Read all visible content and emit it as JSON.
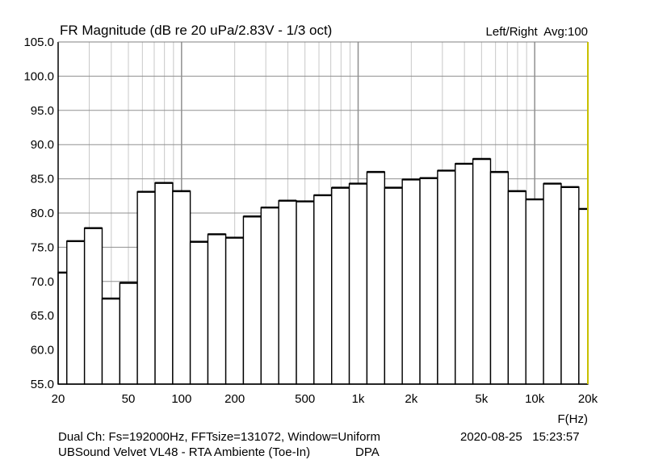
{
  "chart_data": {
    "type": "bar",
    "title": "FR Magnitude (dB re 20 uPa/2.83V - 1/3 oct)",
    "legend": "Left/Right  Avg:100",
    "xlabel": "F(Hz)",
    "ylabel": "",
    "xscale": "log",
    "xlim": [
      20,
      20000
    ],
    "ylim": [
      55,
      105
    ],
    "grid": true,
    "yticks": [
      "55.0",
      "60.0",
      "65.0",
      "70.0",
      "75.0",
      "80.0",
      "85.0",
      "90.0",
      "95.0",
      "100.0",
      "105.0"
    ],
    "xticks": [
      {
        "value": 20,
        "label": "20"
      },
      {
        "value": 50,
        "label": "50"
      },
      {
        "value": 100,
        "label": "100"
      },
      {
        "value": 200,
        "label": "200"
      },
      {
        "value": 500,
        "label": "500"
      },
      {
        "value": 1000,
        "label": "1k"
      },
      {
        "value": 2000,
        "label": "2k"
      },
      {
        "value": 5000,
        "label": "5k"
      },
      {
        "value": 10000,
        "label": "10k"
      },
      {
        "value": 20000,
        "label": "20k"
      }
    ],
    "band_edges": [
      20,
      22.4,
      28.2,
      35.5,
      44.7,
      56.2,
      70.8,
      89.1,
      112,
      141,
      178,
      224,
      282,
      355,
      447,
      562,
      708,
      891,
      1122,
      1413,
      1778,
      2239,
      2818,
      3548,
      4467,
      5623,
      7079,
      8913,
      11220,
      14125,
      17783,
      20000
    ],
    "values": [
      71.3,
      75.9,
      77.8,
      67.5,
      69.8,
      83.1,
      84.4,
      83.2,
      75.8,
      76.9,
      76.4,
      79.5,
      80.8,
      81.8,
      81.7,
      82.6,
      83.7,
      84.3,
      86.0,
      83.7,
      84.9,
      85.1,
      86.2,
      87.2,
      87.9,
      86.0,
      83.2,
      82.0,
      84.3,
      83.8,
      80.6
    ]
  },
  "footer": {
    "line1": "Dual Ch: Fs=192000Hz, FFTsize=131072, Window=Uniform",
    "datetime": "2020-08-25   15:23:57",
    "line2": "UBSound Velvet VL48 - RTA Ambiente (Toe-In)",
    "line3": "DPA"
  },
  "colors": {
    "grid_minor": "#c8c8c8",
    "grid_major": "#909090",
    "bars": "#000000",
    "right_edge": "#c8c000"
  }
}
